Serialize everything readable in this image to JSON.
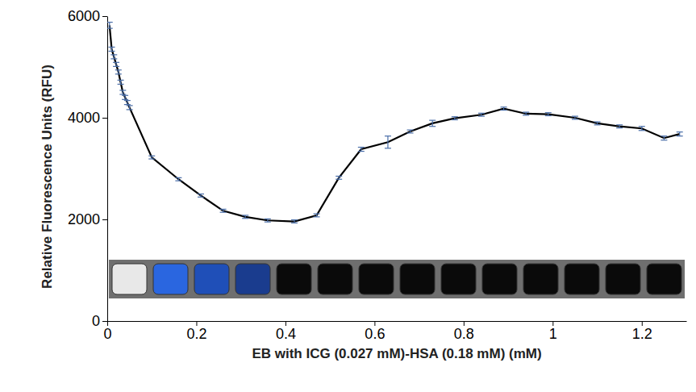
{
  "chart_data": {
    "type": "line",
    "x_label": "EB with ICG (0.027 mM)-HSA (0.18 mM) (mM)",
    "y_label": "Relative Fluorescence Units (RFU)",
    "x": [
      0.005,
      0.01,
      0.015,
      0.02,
      0.025,
      0.03,
      0.035,
      0.04,
      0.045,
      0.05,
      0.1,
      0.16,
      0.21,
      0.26,
      0.31,
      0.36,
      0.42,
      0.47,
      0.52,
      0.57,
      0.63,
      0.68,
      0.73,
      0.78,
      0.84,
      0.89,
      0.94,
      0.99,
      1.05,
      1.1,
      1.15,
      1.2,
      1.25,
      1.285
    ],
    "series": [
      {
        "color": "#000000",
        "line_style": "solid",
        "values": [
          5820,
          5350,
          5200,
          5050,
          4900,
          4700,
          4500,
          4400,
          4300,
          4200,
          3220,
          2790,
          2470,
          2170,
          2050,
          1980,
          1960,
          2080,
          2820,
          3380,
          3520,
          3730,
          3890,
          3990,
          4060,
          4180,
          4080,
          4070,
          4000,
          3890,
          3830,
          3790,
          3600,
          3680
        ],
        "errors": [
          60,
          40,
          40,
          40,
          40,
          40,
          40,
          40,
          40,
          40,
          30,
          30,
          30,
          30,
          30,
          30,
          30,
          30,
          30,
          40,
          120,
          30,
          60,
          30,
          30,
          30,
          30,
          30,
          30,
          30,
          30,
          40,
          40,
          40
        ]
      }
    ],
    "xlim": [
      0,
      1.3
    ],
    "xticks": [
      0,
      0.2,
      0.4,
      0.6,
      0.8,
      1,
      1.2
    ],
    "ylim": [
      0,
      6000
    ],
    "yticks": [
      0,
      2000,
      4000,
      6000
    ],
    "grid": false
  }
}
